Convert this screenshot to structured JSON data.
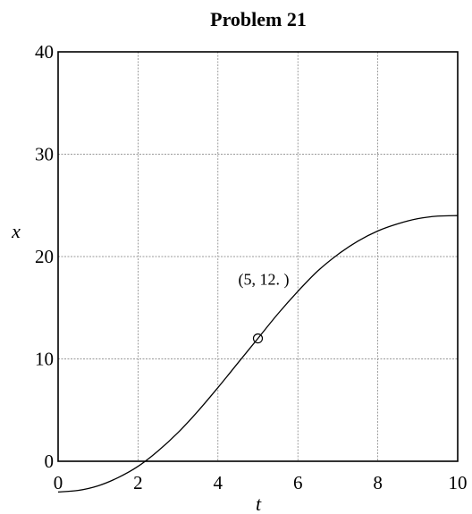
{
  "chart_data": {
    "type": "line",
    "title": "Problem 21",
    "xlabel": "t",
    "ylabel": "x",
    "xlim": [
      0,
      10
    ],
    "ylim": [
      0,
      40
    ],
    "x_ticks": [
      0,
      2,
      4,
      6,
      8,
      10
    ],
    "x_tick_labels": [
      "0",
      "2",
      "4",
      "6",
      "8",
      "10"
    ],
    "y_tick_labels": [
      {
        "value": 0,
        "label": "0"
      },
      {
        "value": 10,
        "label": "10"
      },
      {
        "value": 20,
        "label": "20"
      },
      {
        "value": 30,
        "label": "30"
      },
      {
        "value": 40,
        "label": "40"
      }
    ],
    "y_gridlines": [
      10,
      20,
      30
    ],
    "grid": true,
    "series": [
      {
        "x": [
          0,
          0.5,
          1,
          1.5,
          2,
          2.5,
          3,
          3.5,
          4,
          4.5,
          5,
          5.5,
          6,
          6.5,
          7,
          7.5,
          8,
          8.5,
          9,
          9.5,
          10
        ],
        "y": [
          -3.0,
          -2.85,
          -2.4,
          -1.6,
          -0.5,
          1.0,
          2.8,
          4.9,
          7.2,
          9.6,
          12.0,
          14.4,
          16.6,
          18.6,
          20.2,
          21.5,
          22.5,
          23.2,
          23.7,
          23.95,
          24.0
        ]
      }
    ],
    "highlight_point": {
      "x": 5,
      "y": 12,
      "label": "(5, 12.  )"
    }
  }
}
